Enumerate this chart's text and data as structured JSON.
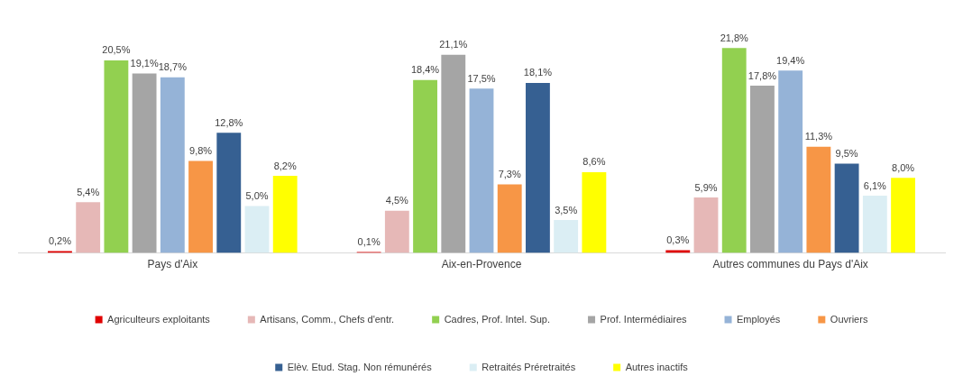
{
  "chart_data": {
    "type": "bar",
    "categories": [
      "Pays d'Aix",
      "Aix-en-Provence",
      "Autres communes du Pays d'Aix"
    ],
    "legend": "bottom",
    "grid": false,
    "series": [
      {
        "name": "Agriculteurs exploitants",
        "color": "#e00000",
        "values": [
          0.2,
          0.1,
          0.3
        ],
        "value_labels": [
          "0,2%",
          "0,1%",
          "0,3%"
        ]
      },
      {
        "name": "Artisans, Comm., Chefs d'entr.",
        "color": "#e6b8b7",
        "values": [
          5.4,
          4.5,
          5.9
        ],
        "value_labels": [
          "5,4%",
          "4,5%",
          "5,9%"
        ]
      },
      {
        "name": "Cadres, Prof. Intel. Sup.",
        "color": "#92d050",
        "values": [
          20.5,
          18.4,
          21.8
        ],
        "value_labels": [
          "20,5%",
          "18,4%",
          "21,8%"
        ]
      },
      {
        "name": "Prof. Intermédiaires",
        "color": "#a5a5a5",
        "values": [
          19.1,
          21.1,
          17.8
        ],
        "value_labels": [
          "19,1%",
          "21,1%",
          "17,8%"
        ]
      },
      {
        "name": "Employés",
        "color": "#95b3d7",
        "values": [
          18.7,
          17.5,
          19.4
        ],
        "value_labels": [
          "18,7%",
          "17,5%",
          "19,4%"
        ]
      },
      {
        "name": "Ouvriers",
        "color": "#f79646",
        "values": [
          9.8,
          7.3,
          11.3
        ],
        "value_labels": [
          "9,8%",
          "7,3%",
          "11,3%"
        ]
      },
      {
        "name": "Elèv. Etud. Stag. Non rémunérés",
        "color": "#366092",
        "values": [
          12.8,
          18.1,
          9.5
        ],
        "value_labels": [
          "12,8%",
          "18,1%",
          "9,5%"
        ]
      },
      {
        "name": "Retraités Préretraités",
        "color": "#dbeef4",
        "values": [
          5.0,
          3.5,
          6.1
        ],
        "value_labels": [
          "5,0%",
          "3,5%",
          "6,1%"
        ]
      },
      {
        "name": "Autres inactifs",
        "color": "#ffff00",
        "values": [
          8.2,
          8.6,
          8.0
        ],
        "value_labels": [
          "8,2%",
          "8,6%",
          "8,0%"
        ]
      }
    ]
  }
}
